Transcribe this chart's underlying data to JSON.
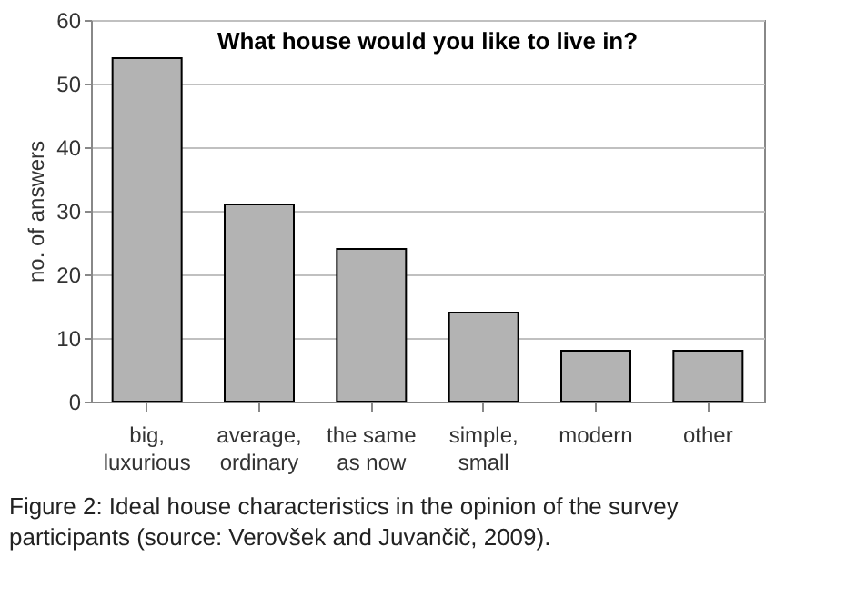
{
  "chart_data": {
    "type": "bar",
    "title": "What house would you like to live in?",
    "ylabel": "no. of answers",
    "categories": [
      "big,\nluxurious",
      "average,\nordinary",
      "the same\nas now",
      "simple,\nsmall",
      "modern",
      "other"
    ],
    "values": [
      54,
      31,
      24,
      14,
      8,
      8
    ],
    "color": "#b3b3b3",
    "ylim": [
      0,
      60
    ],
    "yticks": [
      0,
      10,
      20,
      30,
      40,
      50,
      60
    ],
    "grid": "y",
    "annotations": [
      "Figure 2: Ideal house characteristics in the opinion of the survey\nparticipants (source: Verovšek and Juvančič, 2009)."
    ]
  }
}
